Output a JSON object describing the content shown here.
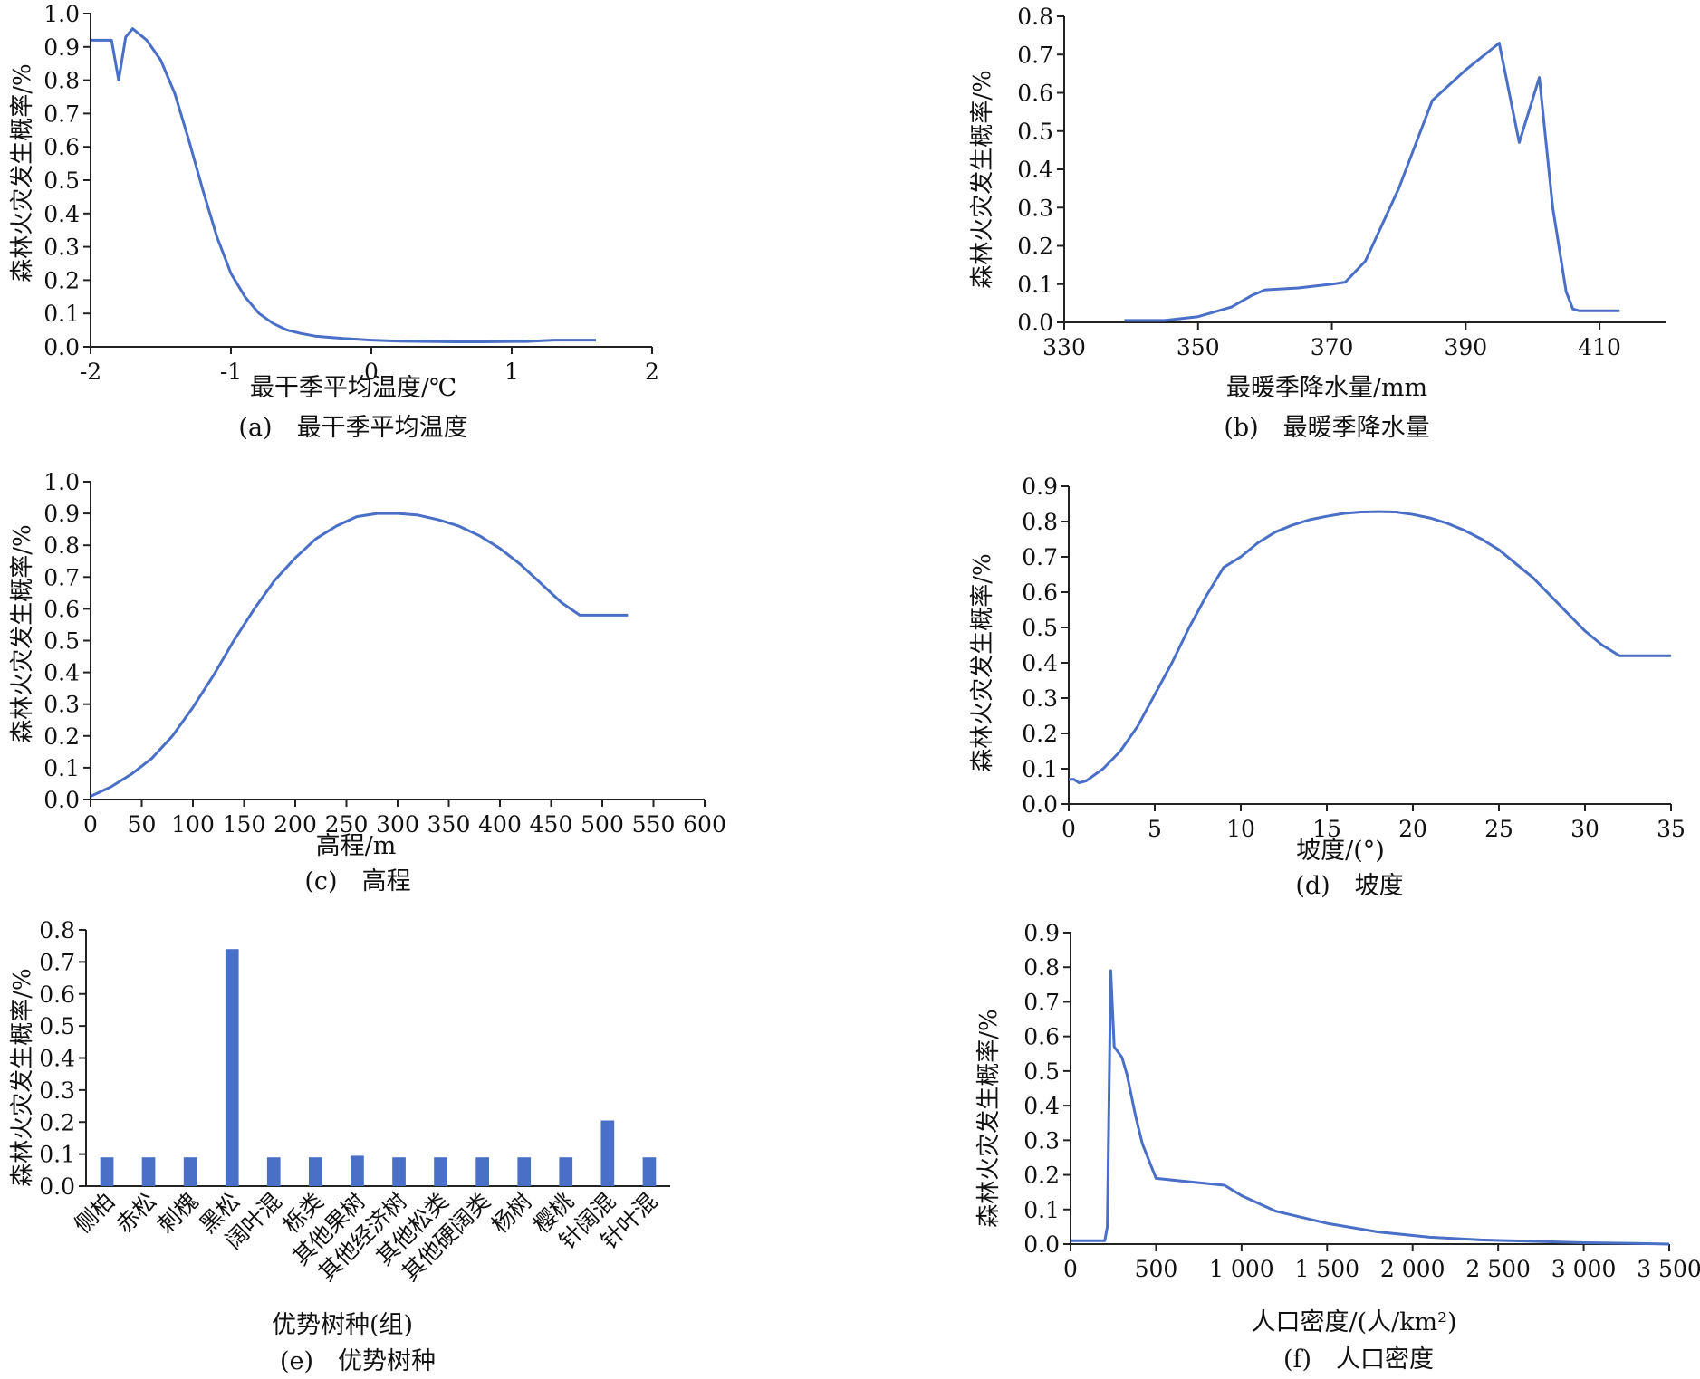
{
  "colors": {
    "series": "#4a6fc6",
    "axis": "#222222"
  },
  "chart_data": [
    {
      "id": "a",
      "type": "line",
      "caption": "(a)　最干季平均温度",
      "xlabel": "最干季平均温度/℃",
      "ylabel": "森林火灾发生概率/%",
      "xlim": [
        -2,
        2
      ],
      "ylim": [
        0,
        1.0
      ],
      "xticks": [
        -2,
        -1,
        0,
        1,
        2
      ],
      "xtick_labels": [
        "-2",
        "-1",
        "0",
        "1",
        "2"
      ],
      "yticks": [
        0,
        0.1,
        0.2,
        0.3,
        0.4,
        0.5,
        0.6,
        0.7,
        0.8,
        0.9,
        1.0
      ],
      "ytick_labels": [
        "0.0",
        "0.1",
        "0.2",
        "0.3",
        "0.4",
        "0.5",
        "0.6",
        "0.7",
        "0.8",
        "0.9",
        "1.0"
      ],
      "x": [
        -2.0,
        -1.85,
        -1.8,
        -1.75,
        -1.7,
        -1.6,
        -1.5,
        -1.4,
        -1.3,
        -1.2,
        -1.1,
        -1.0,
        -0.9,
        -0.8,
        -0.7,
        -0.6,
        -0.5,
        -0.4,
        -0.2,
        0.0,
        0.2,
        0.4,
        0.6,
        0.8,
        1.0,
        1.1,
        1.3,
        1.6
      ],
      "y": [
        0.92,
        0.92,
        0.8,
        0.93,
        0.955,
        0.92,
        0.86,
        0.76,
        0.62,
        0.47,
        0.33,
        0.22,
        0.15,
        0.1,
        0.07,
        0.05,
        0.04,
        0.032,
        0.025,
        0.02,
        0.017,
        0.016,
        0.015,
        0.015,
        0.016,
        0.016,
        0.02,
        0.02
      ]
    },
    {
      "id": "b",
      "type": "line",
      "caption": "(b)　最暖季降水量",
      "xlabel": "最暖季降水量/mm",
      "ylabel": "森林火灾发生概率/%",
      "xlim": [
        330,
        420
      ],
      "ylim": [
        0,
        0.8
      ],
      "xticks": [
        330,
        350,
        370,
        390,
        410
      ],
      "xtick_labels": [
        "330",
        "350",
        "370",
        "390",
        "410"
      ],
      "yticks": [
        0,
        0.1,
        0.2,
        0.3,
        0.4,
        0.5,
        0.6,
        0.7,
        0.8
      ],
      "ytick_labels": [
        "0.0",
        "0.1",
        "0.2",
        "0.3",
        "0.4",
        "0.5",
        "0.6",
        "0.7",
        "0.8"
      ],
      "x": [
        339,
        345,
        350,
        355,
        358,
        360,
        365,
        370,
        372,
        375,
        380,
        385,
        390,
        395,
        398,
        401,
        403,
        405,
        406,
        407,
        413
      ],
      "y": [
        0.005,
        0.005,
        0.015,
        0.04,
        0.07,
        0.085,
        0.09,
        0.1,
        0.105,
        0.16,
        0.35,
        0.58,
        0.66,
        0.73,
        0.47,
        0.64,
        0.3,
        0.08,
        0.035,
        0.03,
        0.03
      ]
    },
    {
      "id": "c",
      "type": "line",
      "caption": "(c)　高程",
      "xlabel": "高程/m",
      "ylabel": "森林火灾发生概率/%",
      "xlim": [
        0,
        600
      ],
      "ylim": [
        0,
        1.0
      ],
      "xticks": [
        0,
        50,
        100,
        150,
        200,
        250,
        300,
        350,
        400,
        450,
        500,
        550,
        600
      ],
      "xtick_labels": [
        "0",
        "50",
        "100",
        "150",
        "200",
        "250",
        "300",
        "350",
        "400",
        "450",
        "500",
        "550",
        "600"
      ],
      "yticks": [
        0,
        0.1,
        0.2,
        0.3,
        0.4,
        0.5,
        0.6,
        0.7,
        0.8,
        0.9,
        1.0
      ],
      "ytick_labels": [
        "0.0",
        "0.1",
        "0.2",
        "0.3",
        "0.4",
        "0.5",
        "0.6",
        "0.7",
        "0.8",
        "0.9",
        "1.0"
      ],
      "x": [
        0,
        20,
        40,
        60,
        80,
        100,
        120,
        140,
        160,
        180,
        200,
        220,
        240,
        260,
        280,
        300,
        320,
        340,
        360,
        380,
        400,
        420,
        440,
        460,
        478,
        500,
        525
      ],
      "y": [
        0.01,
        0.04,
        0.08,
        0.13,
        0.2,
        0.29,
        0.39,
        0.5,
        0.6,
        0.69,
        0.76,
        0.82,
        0.86,
        0.89,
        0.9,
        0.9,
        0.895,
        0.88,
        0.86,
        0.83,
        0.79,
        0.74,
        0.68,
        0.62,
        0.58,
        0.58,
        0.58
      ]
    },
    {
      "id": "d",
      "type": "line",
      "caption": "(d)　坡度",
      "xlabel": "坡度/(°)",
      "ylabel": "森林火灾发生概率/%",
      "xlim": [
        0,
        35
      ],
      "ylim": [
        0,
        0.9
      ],
      "xticks": [
        0,
        5,
        10,
        15,
        20,
        25,
        30,
        35
      ],
      "xtick_labels": [
        "0",
        "5",
        "10",
        "15",
        "20",
        "25",
        "30",
        "35"
      ],
      "yticks": [
        0,
        0.1,
        0.2,
        0.3,
        0.4,
        0.5,
        0.6,
        0.7,
        0.8,
        0.9
      ],
      "ytick_labels": [
        "0.0",
        "0.1",
        "0.2",
        "0.3",
        "0.4",
        "0.5",
        "0.6",
        "0.7",
        "0.8",
        "0.9"
      ],
      "x": [
        0,
        0.3,
        0.6,
        1,
        2,
        3,
        4,
        5,
        6,
        7,
        8,
        9,
        10,
        11,
        12,
        13,
        14,
        15,
        16,
        17,
        18,
        19,
        20,
        21,
        22,
        23,
        24,
        25,
        26,
        27,
        28,
        29,
        30,
        31,
        32,
        32.5,
        35
      ],
      "y": [
        0.07,
        0.07,
        0.06,
        0.065,
        0.1,
        0.15,
        0.22,
        0.31,
        0.4,
        0.5,
        0.59,
        0.67,
        0.7,
        0.74,
        0.77,
        0.79,
        0.805,
        0.815,
        0.823,
        0.827,
        0.828,
        0.827,
        0.82,
        0.81,
        0.795,
        0.775,
        0.75,
        0.72,
        0.68,
        0.64,
        0.59,
        0.54,
        0.49,
        0.45,
        0.42,
        0.42,
        0.42
      ]
    },
    {
      "id": "e",
      "type": "bar",
      "caption": "(e)　优势树种",
      "xlabel": "优势树种(组)",
      "ylabel": "森林火灾发生概率/%",
      "ylim": [
        0,
        0.8
      ],
      "yticks": [
        0,
        0.1,
        0.2,
        0.3,
        0.4,
        0.5,
        0.6,
        0.7,
        0.8
      ],
      "ytick_labels": [
        "0.0",
        "0.1",
        "0.2",
        "0.3",
        "0.4",
        "0.5",
        "0.6",
        "0.7",
        "0.8"
      ],
      "categories": [
        "侧柏",
        "赤松",
        "刺槐",
        "黑松",
        "阔叶混",
        "栎类",
        "其他果树",
        "其他经济树",
        "其他松类",
        "其他硬阔类",
        "杨树",
        "樱桃",
        "针阔混",
        "针叶混"
      ],
      "values": [
        0.09,
        0.09,
        0.09,
        0.74,
        0.09,
        0.09,
        0.095,
        0.09,
        0.09,
        0.09,
        0.09,
        0.09,
        0.205,
        0.09
      ]
    },
    {
      "id": "f",
      "type": "line",
      "caption": "(f)　人口密度",
      "xlabel": "人口密度/(人/km²)",
      "ylabel": "森林火灾发生概率/%",
      "xlim": [
        0,
        3500
      ],
      "ylim": [
        0,
        0.9
      ],
      "xticks": [
        0,
        500,
        1000,
        1500,
        2000,
        2500,
        3000,
        3500
      ],
      "xtick_labels": [
        "0",
        "500",
        "1 000",
        "1 500",
        "2 000",
        "2 500",
        "3 000",
        "3 500"
      ],
      "yticks": [
        0,
        0.1,
        0.2,
        0.3,
        0.4,
        0.5,
        0.6,
        0.7,
        0.8,
        0.9
      ],
      "ytick_labels": [
        "0.0",
        "0.1",
        "0.2",
        "0.3",
        "0.4",
        "0.5",
        "0.6",
        "0.7",
        "0.8",
        "0.9"
      ],
      "x": [
        0,
        200,
        215,
        235,
        255,
        300,
        330,
        380,
        420,
        500,
        700,
        900,
        1000,
        1200,
        1500,
        1800,
        2100,
        2400,
        2700,
        3000,
        3300,
        3500
      ],
      "y": [
        0.01,
        0.01,
        0.05,
        0.79,
        0.57,
        0.54,
        0.49,
        0.37,
        0.29,
        0.19,
        0.18,
        0.17,
        0.14,
        0.095,
        0.06,
        0.035,
        0.02,
        0.012,
        0.008,
        0.004,
        0.002,
        0.0
      ]
    }
  ]
}
